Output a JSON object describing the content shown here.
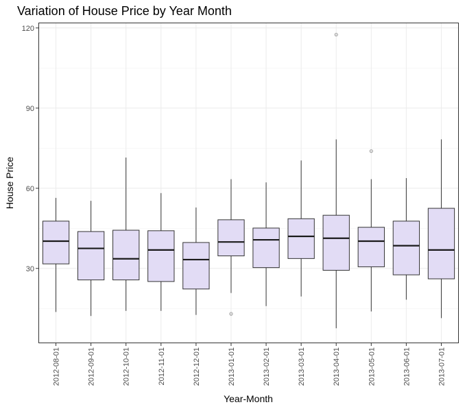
{
  "chart_data": {
    "type": "boxplot",
    "title": "Variation of House Price by Year Month",
    "xlabel": "Year-Month",
    "ylabel": "House Price",
    "ylim": [
      2,
      122
    ],
    "yticks": [
      30,
      60,
      90,
      120
    ],
    "grid": true,
    "legend": "none",
    "colors": {
      "box_fill": "#e2dcf5",
      "box_stroke": "#333333",
      "median": "#1a1a1a",
      "grid": "#ebebeb",
      "panel_border": "#333333",
      "outlier": "#999999"
    },
    "categories": [
      "2012-08-01",
      "2012-09-01",
      "2012-10-01",
      "2012-11-01",
      "2012-12-01",
      "2013-01-01",
      "2013-02-01",
      "2013-03-01",
      "2013-04-01",
      "2013-05-01",
      "2013-06-01",
      "2013-07-01"
    ],
    "boxes": [
      {
        "min": 13.7,
        "q1": 31.7,
        "median": 40.2,
        "q3": 47.7,
        "max": 56.4,
        "outliers": []
      },
      {
        "min": 12.2,
        "q1": 25.7,
        "median": 37.5,
        "q3": 43.8,
        "max": 55.3,
        "outliers": []
      },
      {
        "min": 14.1,
        "q1": 25.7,
        "median": 33.6,
        "q3": 44.3,
        "max": 71.5,
        "outliers": []
      },
      {
        "min": 14.1,
        "q1": 25.1,
        "median": 36.9,
        "q3": 44.1,
        "max": 58.2,
        "outliers": []
      },
      {
        "min": 12.6,
        "q1": 22.3,
        "median": 33.3,
        "q3": 39.7,
        "max": 52.8,
        "outliers": []
      },
      {
        "min": 20.8,
        "q1": 34.7,
        "median": 39.9,
        "q3": 48.2,
        "max": 63.4,
        "outliers": [
          13.0
        ]
      },
      {
        "min": 15.9,
        "q1": 30.3,
        "median": 40.7,
        "q3": 45.1,
        "max": 62.2,
        "outliers": []
      },
      {
        "min": 19.5,
        "q1": 33.7,
        "median": 42.0,
        "q3": 48.6,
        "max": 70.4,
        "outliers": []
      },
      {
        "min": 7.6,
        "q1": 29.3,
        "median": 41.3,
        "q3": 49.9,
        "max": 78.3,
        "outliers": [
          117.5
        ]
      },
      {
        "min": 13.9,
        "q1": 30.6,
        "median": 40.2,
        "q3": 45.4,
        "max": 63.4,
        "outliers": [
          73.9
        ]
      },
      {
        "min": 18.3,
        "q1": 27.6,
        "median": 38.5,
        "q3": 47.7,
        "max": 63.8,
        "outliers": []
      },
      {
        "min": 11.4,
        "q1": 26.1,
        "median": 36.9,
        "q3": 52.5,
        "max": 78.3,
        "outliers": []
      }
    ]
  }
}
